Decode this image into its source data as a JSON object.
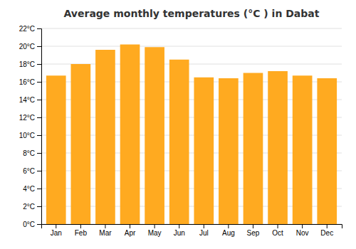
{
  "chart_data": {
    "type": "bar",
    "title": "Average monthly temperatures (°C ) in Dabat",
    "categories": [
      "Jan",
      "Feb",
      "Mar",
      "Apr",
      "May",
      "Jun",
      "Jul",
      "Aug",
      "Sep",
      "Oct",
      "Nov",
      "Dec"
    ],
    "values": [
      16.7,
      18.0,
      19.6,
      20.2,
      19.9,
      18.5,
      16.5,
      16.4,
      17.0,
      17.2,
      16.7,
      16.4
    ],
    "color": "#FFAA20",
    "ylim": [
      0,
      22
    ],
    "yticks": [
      {
        "value": 0,
        "label": "0°C"
      },
      {
        "value": 2,
        "label": "2°C"
      },
      {
        "value": 4,
        "label": "4°C"
      },
      {
        "value": 6,
        "label": "6°C"
      },
      {
        "value": 8,
        "label": "8°C"
      },
      {
        "value": 10,
        "label": "10°C"
      },
      {
        "value": 12,
        "label": "12°C"
      },
      {
        "value": 14,
        "label": "14°C"
      },
      {
        "value": 16,
        "label": "16°C"
      },
      {
        "value": 18,
        "label": "18°C"
      },
      {
        "value": 20,
        "label": "20°C"
      },
      {
        "value": 22,
        "label": "22°C"
      }
    ],
    "grid": true
  }
}
